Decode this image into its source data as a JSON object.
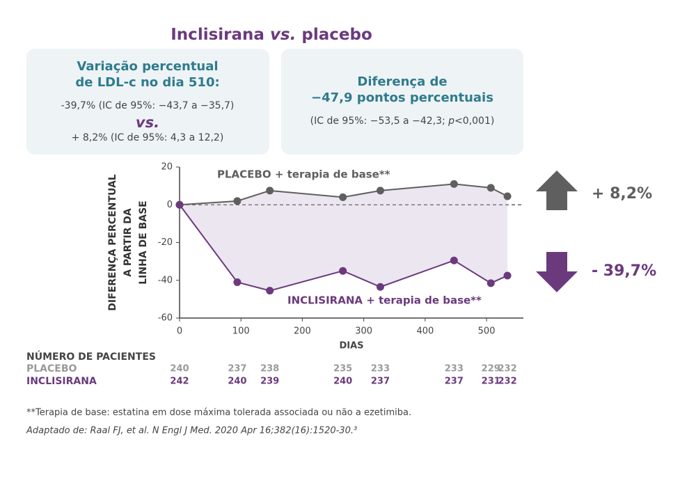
{
  "chart_data": {
    "type": "line",
    "title_parts": [
      "Inclisirana",
      "vs.",
      "placebo"
    ],
    "box_left": {
      "title_lines": [
        "Variação percentual",
        "de LDL-c no dia 510:"
      ],
      "line1": "-39,7% (IC de 95%: −43,7 a −35,7)",
      "vs": "vs.",
      "line2": "+ 8,2% (IC de 95%: 4,3 a 12,2)"
    },
    "box_right": {
      "title_lines": [
        "Diferença de",
        "−47,9 pontos percentuais"
      ],
      "line_parts": [
        "(IC de 95%: −53,5 a −42,3; ",
        "p",
        "<0,001)"
      ]
    },
    "x": [
      0,
      94,
      147,
      266,
      327,
      447,
      507,
      534
    ],
    "series": [
      {
        "name": "PLACEBO + terapia de base**",
        "color": "#5f5f5f",
        "values": [
          0,
          2,
          7.5,
          4,
          7.5,
          11,
          9,
          4.5
        ]
      },
      {
        "name": "INCLISIRANA + terapia de base**",
        "color": "#6b3a7d",
        "values": [
          0,
          -41,
          -45.5,
          -35,
          -43.5,
          -29.5,
          -41.5,
          -37.5
        ]
      }
    ],
    "xlim": [
      0,
      560
    ],
    "xticks": [
      0,
      100,
      200,
      300,
      400,
      500
    ],
    "ylim": [
      -60,
      20
    ],
    "yticks": [
      -60,
      -40,
      -20,
      0,
      20
    ],
    "xlabel": "DIAS",
    "ylabel_lines": [
      "DIFERENÇA PERCENTUAL",
      "A PARTIR DA",
      "LINHA DE BASE"
    ],
    "area_color": "#ece6f0",
    "annotations": [
      "+ 8,2%",
      "- 39,7%"
    ],
    "patients": {
      "title": "NÚMERO DE PACIENTES",
      "rows": [
        {
          "label": "PLACEBO",
          "color": "#9a9a9a",
          "values": [
            240,
            237,
            238,
            235,
            233,
            233,
            229,
            232
          ]
        },
        {
          "label": "INCLISIRANA",
          "color": "#6b3a7d",
          "values": [
            242,
            240,
            239,
            240,
            237,
            237,
            231,
            232
          ]
        }
      ]
    },
    "footnote": "**Terapia de base: estatina em dose máxima tolerada associada ou não a ezetimiba.",
    "source": "Adaptado de: Raal FJ, et al. N Engl J Med. 2020 Apr 16;382(16):1520-30.³"
  }
}
